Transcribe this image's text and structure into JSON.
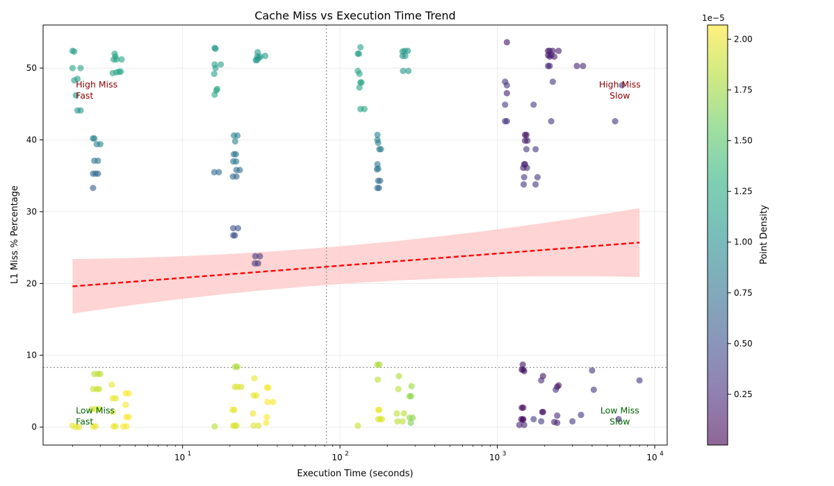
{
  "chart_data": {
    "type": "scatter",
    "title": "Cache Miss vs Execution Time Trend",
    "xlabel": "Execution Time (seconds)",
    "ylabel": "L1 Miss % Percentage",
    "x_scale": "log",
    "xlim": [
      1.3,
      12000
    ],
    "ylim": [
      -2.5,
      56
    ],
    "x_major_ticks": [
      {
        "value": 10,
        "label": "10",
        "sup": "1"
      },
      {
        "value": 100,
        "label": "10",
        "sup": "2"
      },
      {
        "value": 1000,
        "label": "10",
        "sup": "3"
      },
      {
        "value": 10000,
        "label": "10",
        "sup": "4"
      }
    ],
    "y_ticks": [
      0,
      10,
      20,
      30,
      40,
      50
    ],
    "grid": true,
    "reference_lines": {
      "x": 82,
      "y": 8.3
    },
    "trend": {
      "type": "regression",
      "x_range": [
        2,
        8000
      ],
      "y_start": 19.6,
      "y_end": 25.7,
      "ci_lower_start": 15.8,
      "ci_lower_end": 20.9,
      "ci_upper_start": 23.4,
      "ci_upper_end": 30.5,
      "ci_mid_lower": 21.2,
      "ci_mid_upper": 24.4,
      "line_color": "#ff0000",
      "band_color": "#ffcccc"
    },
    "quadrant_labels": [
      {
        "line1": "High Miss",
        "line2": "Fast",
        "color": "#8b0000",
        "x": 2.1,
        "y": 47.3,
        "align": "start"
      },
      {
        "line1": "High Miss",
        "line2": "Slow",
        "color": "#8b0000",
        "x": 6000,
        "y": 47.3,
        "align": "middle"
      },
      {
        "line1": "Low Miss",
        "line2": "Fast",
        "color": "#006400",
        "x": 2.1,
        "y": 1.9,
        "align": "start"
      },
      {
        "line1": "Low Miss",
        "line2": "Slow",
        "color": "#006400",
        "x": 6000,
        "y": 1.9,
        "align": "middle"
      }
    ],
    "colorbar": {
      "label": "Point Density",
      "multiplier": "1e−5",
      "range": [
        0.0,
        2.07
      ],
      "ticks": [
        0.25,
        0.5,
        0.75,
        1.0,
        1.25,
        1.5,
        1.75,
        2.0
      ],
      "tick_labels": [
        "0.25",
        "0.50",
        "0.75",
        "1.00",
        "1.25",
        "1.50",
        "1.75",
        "2.00"
      ]
    },
    "points": [
      [
        2.0,
        52.4,
        1.15
      ],
      [
        2.05,
        52.3,
        1.15
      ],
      [
        2.0,
        50.0,
        1.2
      ],
      [
        2.25,
        50.0,
        1.2
      ],
      [
        2.05,
        48.3,
        1.15
      ],
      [
        2.15,
        48.5,
        1.15
      ],
      [
        2.1,
        46.2,
        1.1
      ],
      [
        2.15,
        44.1,
        1.1
      ],
      [
        2.25,
        44.1,
        1.1
      ],
      [
        2.7,
        40.2,
        0.9
      ],
      [
        2.75,
        40.2,
        0.9
      ],
      [
        2.85,
        39.4,
        0.9
      ],
      [
        3.0,
        39.4,
        0.9
      ],
      [
        2.75,
        37.1,
        0.8
      ],
      [
        2.9,
        37.1,
        0.8
      ],
      [
        2.7,
        35.3,
        0.7
      ],
      [
        2.8,
        35.3,
        0.7
      ],
      [
        2.9,
        35.3,
        0.7
      ],
      [
        2.7,
        33.3,
        0.6
      ],
      [
        3.7,
        52.0,
        1.2
      ],
      [
        3.75,
        51.6,
        1.2
      ],
      [
        3.65,
        51.2,
        1.2
      ],
      [
        3.8,
        51.2,
        1.2
      ],
      [
        4.1,
        51.2,
        1.2
      ],
      [
        3.6,
        49.3,
        1.2
      ],
      [
        3.8,
        49.4,
        1.2
      ],
      [
        3.95,
        49.5,
        1.2
      ],
      [
        4.05,
        49.5,
        1.2
      ],
      [
        16,
        52.8,
        1.1
      ],
      [
        16.2,
        52.7,
        1.1
      ],
      [
        16,
        50.5,
        1.15
      ],
      [
        17.5,
        50.5,
        1.15
      ],
      [
        16.2,
        50,
        1.15
      ],
      [
        15.9,
        49.2,
        1.15
      ],
      [
        16.6,
        47.1,
        1.2
      ],
      [
        16.4,
        46.9,
        1.2
      ],
      [
        16.0,
        46.3,
        1.2
      ],
      [
        21.2,
        40.6,
        0.9
      ],
      [
        22.3,
        40.6,
        0.9
      ],
      [
        21.6,
        39.8,
        0.9
      ],
      [
        21.2,
        38.0,
        0.8
      ],
      [
        21.8,
        38.0,
        0.8
      ],
      [
        21.0,
        37.0,
        0.8
      ],
      [
        21.9,
        37.0,
        0.8
      ],
      [
        22.0,
        35.8,
        0.75
      ],
      [
        23.1,
        35.8,
        0.75
      ],
      [
        15.9,
        35.5,
        0.7
      ],
      [
        17.0,
        35.5,
        0.7
      ],
      [
        20.9,
        34.9,
        0.7
      ],
      [
        22.0,
        34.9,
        0.7
      ],
      [
        30,
        52.2,
        1.1
      ],
      [
        29.8,
        51.6,
        1.1
      ],
      [
        31.2,
        51.6,
        1.1
      ],
      [
        33.5,
        51.7,
        1.1
      ],
      [
        29.2,
        51.1,
        1.1
      ],
      [
        29.7,
        51.1,
        1.1
      ],
      [
        30.5,
        51.4,
        1.1
      ],
      [
        21.0,
        27.7,
        0.5
      ],
      [
        22.5,
        27.7,
        0.5
      ],
      [
        21.0,
        26.7,
        0.5
      ],
      [
        21.5,
        26.7,
        0.5
      ],
      [
        29.0,
        23.8,
        0.35
      ],
      [
        31.0,
        23.8,
        0.35
      ],
      [
        28.8,
        22.8,
        0.35
      ],
      [
        30.2,
        22.8,
        0.35
      ],
      [
        2.0,
        0.2,
        2.0
      ],
      [
        2.1,
        0.0,
        2.0
      ],
      [
        2.2,
        0.0,
        2.0
      ],
      [
        2.65,
        2.5,
        1.95
      ],
      [
        2.8,
        2.5,
        1.95
      ],
      [
        2.95,
        2.5,
        1.95
      ],
      [
        2.7,
        5.3,
        1.9
      ],
      [
        2.85,
        5.3,
        1.9
      ],
      [
        2.95,
        5.3,
        1.9
      ],
      [
        2.75,
        7.4,
        1.85
      ],
      [
        2.9,
        7.4,
        1.85
      ],
      [
        3.0,
        7.4,
        1.85
      ],
      [
        2.7,
        0.1,
        2.0
      ],
      [
        2.8,
        0.1,
        2.0
      ],
      [
        3.55,
        5.9,
        2.0
      ],
      [
        3.6,
        4.0,
        2.0
      ],
      [
        3.75,
        4.0,
        2.0
      ],
      [
        3.6,
        2.1,
        2.0
      ],
      [
        3.65,
        0.1,
        2.0
      ],
      [
        3.75,
        0.1,
        2.0
      ],
      [
        4.35,
        4.7,
        2.05
      ],
      [
        4.55,
        4.7,
        2.05
      ],
      [
        4.35,
        3.1,
        2.05
      ],
      [
        4.4,
        1.4,
        2.05
      ],
      [
        4.55,
        1.4,
        2.05
      ],
      [
        4.2,
        0.1,
        2.05
      ],
      [
        4.4,
        0.1,
        2.05
      ],
      [
        16.0,
        0.1,
        1.85
      ],
      [
        21.6,
        8.4,
        1.8
      ],
      [
        22.3,
        8.4,
        1.8
      ],
      [
        21.5,
        5.6,
        1.95
      ],
      [
        22.4,
        5.6,
        1.95
      ],
      [
        23.6,
        5.6,
        1.95
      ],
      [
        28.6,
        6.8,
        2.0
      ],
      [
        20.8,
        2.4,
        2.0
      ],
      [
        21.3,
        2.4,
        2.0
      ],
      [
        21.0,
        0.2,
        1.95
      ],
      [
        21.5,
        0.2,
        1.95
      ],
      [
        22.0,
        0.2,
        1.95
      ],
      [
        28.3,
        4.4,
        2.0
      ],
      [
        29.4,
        4.4,
        2.0
      ],
      [
        28.0,
        1.9,
        2.0
      ],
      [
        34.3,
        1.4,
        2.05
      ],
      [
        34.0,
        0.6,
        2.05
      ],
      [
        28.3,
        0.2,
        1.95
      ],
      [
        30.3,
        0.2,
        1.95
      ],
      [
        35.0,
        5.5,
        2.05
      ],
      [
        34.5,
        5.5,
        2.05
      ],
      [
        34.7,
        3.5,
        2.05
      ],
      [
        37.6,
        3.5,
        2.05
      ],
      [
        130,
        52.0,
        1.15
      ],
      [
        132,
        52.0,
        1.15
      ],
      [
        135,
        52.9,
        1.15
      ],
      [
        130,
        49.6,
        1.2
      ],
      [
        133,
        49.2,
        1.2
      ],
      [
        135,
        48.0,
        1.2
      ],
      [
        137,
        48.0,
        1.2
      ],
      [
        133,
        47.3,
        1.2
      ],
      [
        135,
        44.3,
        1.2
      ],
      [
        143,
        44.3,
        1.2
      ],
      [
        250,
        52.3,
        1.1
      ],
      [
        258,
        52.4,
        1.1
      ],
      [
        270,
        52.4,
        1.1
      ],
      [
        250,
        51.7,
        1.1
      ],
      [
        260,
        51.7,
        1.1
      ],
      [
        252,
        49.6,
        1.1
      ],
      [
        272,
        49.6,
        1.1
      ],
      [
        173,
        40.7,
        0.9
      ],
      [
        173,
        40.0,
        0.9
      ],
      [
        175,
        39.6,
        0.9
      ],
      [
        178,
        38.7,
        0.85
      ],
      [
        182,
        38.7,
        0.85
      ],
      [
        173,
        36.6,
        0.8
      ],
      [
        175,
        36.0,
        0.8
      ],
      [
        172,
        35.9,
        0.8
      ],
      [
        175,
        34.3,
        0.75
      ],
      [
        180,
        34.3,
        0.75
      ],
      [
        173,
        33.3,
        0.7
      ],
      [
        177,
        33.3,
        0.7
      ],
      [
        173,
        8.7,
        1.8
      ],
      [
        178,
        8.7,
        1.8
      ],
      [
        174,
        6.6,
        1.85
      ],
      [
        237,
        7.1,
        1.8
      ],
      [
        285,
        5.7,
        1.75
      ],
      [
        235,
        5.3,
        1.85
      ],
      [
        277,
        4.3,
        1.7
      ],
      [
        283,
        4.3,
        1.7
      ],
      [
        175,
        2.4,
        2.0
      ],
      [
        178,
        2.4,
        2.0
      ],
      [
        230,
        1.9,
        1.85
      ],
      [
        255,
        1.9,
        1.85
      ],
      [
        277,
        1.3,
        1.7
      ],
      [
        290,
        1.3,
        1.7
      ],
      [
        175,
        1.1,
        1.95
      ],
      [
        180,
        1.1,
        1.95
      ],
      [
        185,
        1.1,
        1.95
      ],
      [
        232,
        0.8,
        1.85
      ],
      [
        250,
        0.8,
        1.85
      ],
      [
        282,
        0.6,
        1.65
      ],
      [
        130,
        0.2,
        1.9
      ],
      [
        1150,
        53.6,
        0.1
      ],
      [
        2100,
        52.4,
        0.15
      ],
      [
        2150,
        52.4,
        0.15
      ],
      [
        2250,
        52.4,
        0.15
      ],
      [
        2450,
        52.4,
        0.15
      ],
      [
        2100,
        51.8,
        0.15
      ],
      [
        2150,
        51.6,
        0.15
      ],
      [
        2200,
        51.8,
        0.15
      ],
      [
        2300,
        51.6,
        0.15
      ],
      [
        2100,
        50.3,
        0.2
      ],
      [
        2150,
        50.3,
        0.2
      ],
      [
        3200,
        50.3,
        0.2
      ],
      [
        3500,
        50.3,
        0.2
      ],
      [
        1120,
        48.1,
        0.3
      ],
      [
        1150,
        47.6,
        0.3
      ],
      [
        2250,
        48.1,
        0.3
      ],
      [
        6200,
        47.6,
        0.3
      ],
      [
        1150,
        46.5,
        0.15
      ],
      [
        1120,
        44.9,
        0.35
      ],
      [
        1700,
        44.9,
        0.35
      ],
      [
        1120,
        42.6,
        0.3
      ],
      [
        1150,
        42.6,
        0.3
      ],
      [
        2200,
        42.6,
        0.3
      ],
      [
        5600,
        42.6,
        0.3
      ],
      [
        1500,
        40.7,
        0.1
      ],
      [
        1530,
        40.7,
        0.1
      ],
      [
        1500,
        39.9,
        0.15
      ],
      [
        1550,
        39.9,
        0.15
      ],
      [
        1530,
        38.7,
        0.3
      ],
      [
        1750,
        38.7,
        0.3
      ],
      [
        1480,
        36.6,
        0.2
      ],
      [
        1500,
        36.6,
        0.2
      ],
      [
        1460,
        36.1,
        0.2
      ],
      [
        1540,
        36.1,
        0.2
      ],
      [
        1480,
        34.8,
        0.3
      ],
      [
        1800,
        34.8,
        0.3
      ],
      [
        1470,
        33.8,
        0.3
      ],
      [
        1750,
        33.8,
        0.3
      ],
      [
        1450,
        8.7,
        0.1
      ],
      [
        1430,
        8.0,
        0.1
      ],
      [
        1460,
        8.0,
        0.1
      ],
      [
        1480,
        7.8,
        0.1
      ],
      [
        1950,
        7.1,
        0.1
      ],
      [
        1900,
        6.5,
        0.25
      ],
      [
        2450,
        5.8,
        0.1
      ],
      [
        2400,
        5.6,
        0.1
      ],
      [
        2350,
        5.2,
        0.3
      ],
      [
        4000,
        7.9,
        0.3
      ],
      [
        4100,
        5.2,
        0.3
      ],
      [
        8000,
        6.5,
        0.3
      ],
      [
        1430,
        2.7,
        0.05
      ],
      [
        1460,
        2.7,
        0.05
      ],
      [
        1930,
        2.1,
        0.1
      ],
      [
        1950,
        2.1,
        0.1
      ],
      [
        2400,
        1.6,
        0.25
      ],
      [
        3400,
        1.7,
        0.3
      ],
      [
        1420,
        1.1,
        0.05
      ],
      [
        1460,
        1.1,
        0.05
      ],
      [
        1450,
        1.0,
        0.05
      ],
      [
        1700,
        1.1,
        0.35
      ],
      [
        1900,
        0.8,
        0.35
      ],
      [
        2300,
        0.7,
        0.2
      ],
      [
        2400,
        0.6,
        0.2
      ],
      [
        3000,
        0.8,
        0.3
      ],
      [
        1380,
        0.3,
        0.2
      ],
      [
        1480,
        0.3,
        0.2
      ],
      [
        5900,
        1.1,
        0.25
      ]
    ]
  }
}
